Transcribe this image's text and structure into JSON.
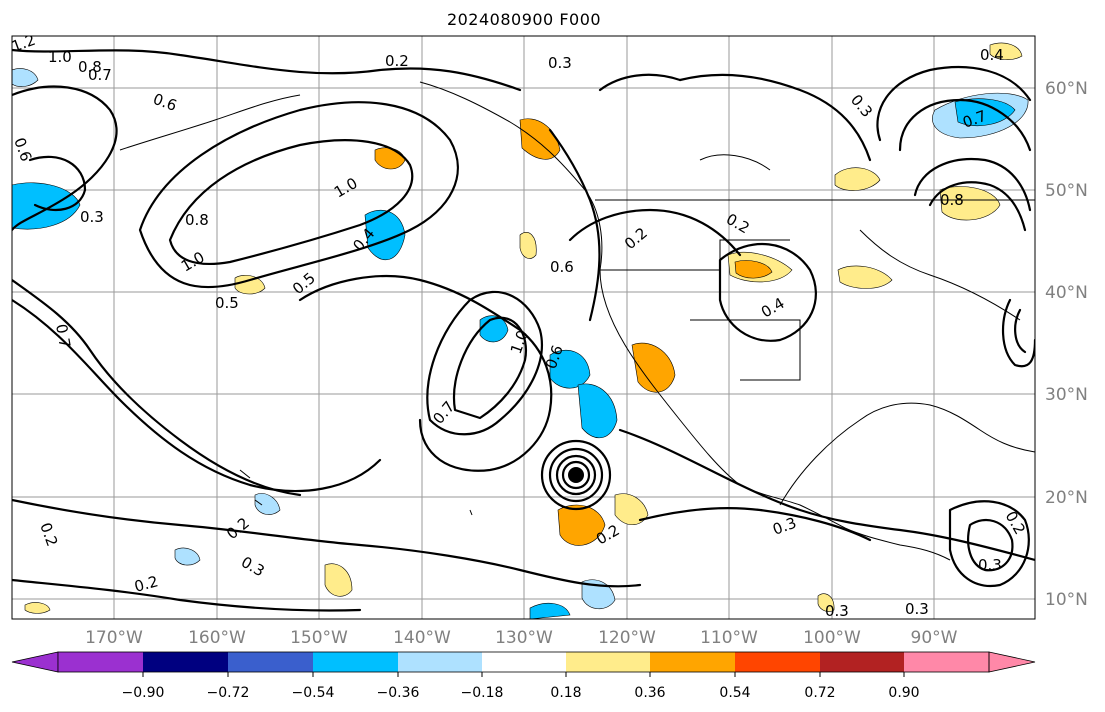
{
  "title": "2024080900 F000",
  "lon_labels": [
    "170°W",
    "160°W",
    "150°W",
    "140°W",
    "130°W",
    "120°W",
    "110°W",
    "100°W",
    "90°W"
  ],
  "lat_labels": [
    "60°N",
    "50°N",
    "40°N",
    "30°N",
    "20°N",
    "10°N"
  ],
  "colorbar": {
    "ticks": [
      "−0.90",
      "−0.72",
      "−0.54",
      "−0.36",
      "−0.18",
      "0.18",
      "0.36",
      "0.54",
      "0.72",
      "0.90"
    ],
    "colors": [
      "#9b30d0",
      "#000080",
      "#3a5fcd",
      "#00bfff",
      "#aee1ff",
      "#ffffff",
      "#ffec8b",
      "#ffa500",
      "#ff4500",
      "#b22222",
      "#ff88a8"
    ]
  },
  "contour_labels": [
    "1.2",
    "1.0",
    "0.8",
    "0.7",
    "0.6",
    "0.5",
    "0.4",
    "0.3",
    "0.2"
  ]
}
